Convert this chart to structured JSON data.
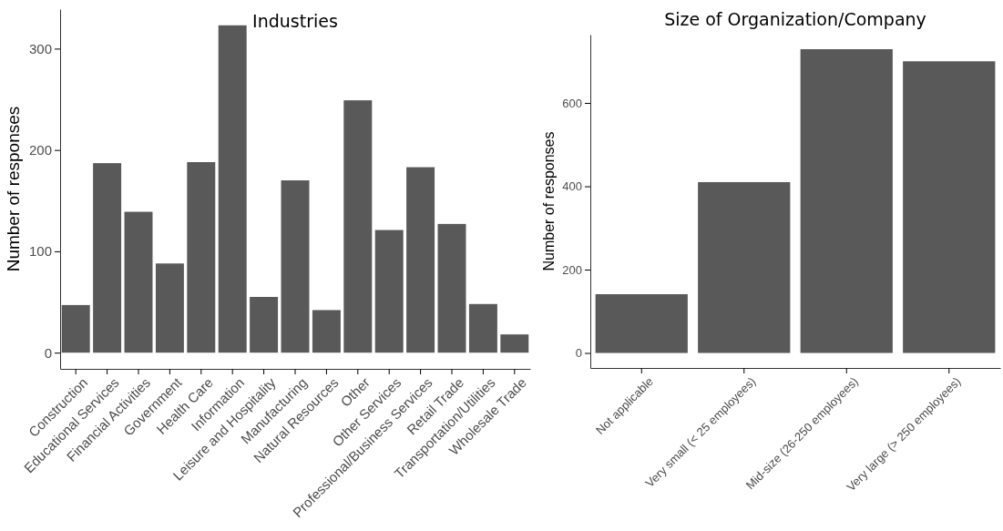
{
  "chart_data": [
    {
      "type": "bar",
      "title": "Industries",
      "ylabel": "Number of responses",
      "categories": [
        "Construction",
        "Educational Services",
        "Financial Activities",
        "Government",
        "Health Care",
        "Information",
        "Leisure and Hospitality",
        "Manufacturing",
        "Natural Resources",
        "Other",
        "Other Services",
        "Professional/Business Services",
        "Retail Trade",
        "Transportation/Utilities",
        "Wholesale Trade"
      ],
      "values": [
        47,
        187,
        139,
        88,
        188,
        323,
        55,
        170,
        42,
        249,
        121,
        183,
        127,
        48,
        18
      ],
      "color": "#595959",
      "ylim": [
        -16,
        339
      ],
      "yticks": [
        0,
        100,
        200,
        300
      ],
      "grid": false
    },
    {
      "type": "bar",
      "title": "Size of Organization/Company",
      "ylabel": "Number of responses",
      "categories": [
        "Not applicable",
        "Very small (< 25 employees)",
        "Mid-size (26-250 employees)",
        "Very large (> 250 employees)"
      ],
      "values": [
        141,
        410,
        729,
        700
      ],
      "color": "#595959",
      "ylim": [
        -36,
        764
      ],
      "yticks": [
        0,
        200,
        400,
        600
      ],
      "grid": false
    }
  ]
}
